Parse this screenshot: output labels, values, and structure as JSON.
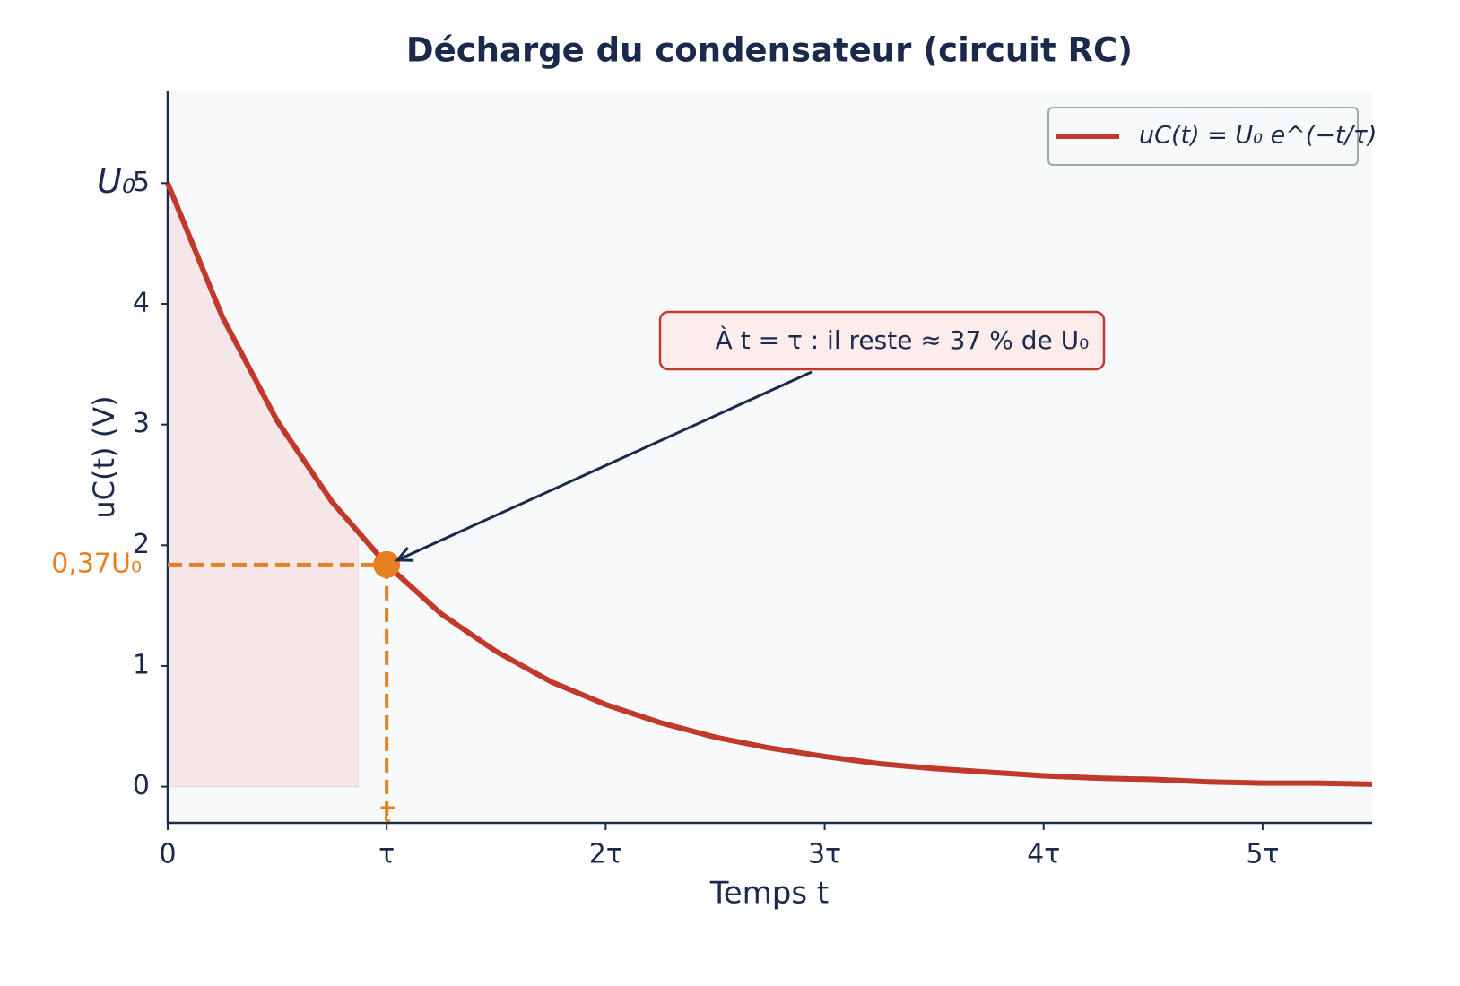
{
  "chart_data": {
    "type": "line",
    "title": "Décharge du condensateur (circuit RC)",
    "xlabel": "Temps t",
    "ylabel": "uC(t) (V)",
    "x": [
      0,
      0.25,
      0.5,
      0.75,
      1,
      1.25,
      1.5,
      1.75,
      2,
      2.25,
      2.5,
      2.75,
      3,
      3.25,
      3.5,
      3.75,
      4,
      4.25,
      4.5,
      4.75,
      5,
      5.25,
      5.5
    ],
    "series": [
      {
        "name": "uC(t) = U₀ e^(−t/τ)",
        "color": "#c0392b",
        "values": [
          5,
          3.89,
          3.03,
          2.36,
          1.84,
          1.43,
          1.12,
          0.87,
          0.68,
          0.53,
          0.41,
          0.32,
          0.25,
          0.19,
          0.15,
          0.12,
          0.09,
          0.07,
          0.06,
          0.04,
          0.03,
          0.03,
          0.02
        ]
      }
    ],
    "xlim": [
      0,
      5.5
    ],
    "ylim": [
      -0.3,
      5.76
    ],
    "xticks": [
      0,
      {
        "value": 1,
        "label": "τ"
      },
      {
        "value": 2,
        "label": "2τ"
      },
      {
        "value": 3,
        "label": "3τ"
      },
      {
        "value": 4,
        "label": "4τ"
      },
      {
        "value": 5,
        "label": "5τ"
      }
    ],
    "yticks": [
      0,
      1,
      2,
      3,
      4,
      5
    ],
    "grid": false,
    "legend": "upper right",
    "fill_xlim": [
      0,
      0.87
    ],
    "fill_color": "#f5e6e8",
    "marker": {
      "x": 1,
      "y": 1.84,
      "color": "#e67e22",
      "x_label": "τ",
      "y_label": "0,37U₀"
    },
    "u0_label": {
      "value": 5,
      "label": "U₀"
    },
    "annotation": "À t = τ : il reste ≈ 37 % de U₀"
  }
}
